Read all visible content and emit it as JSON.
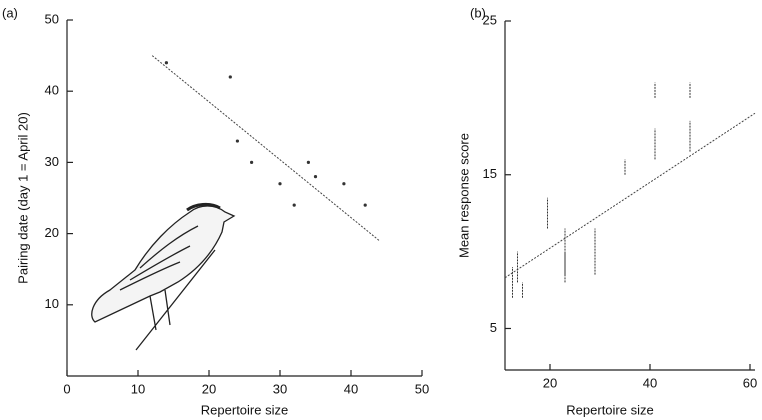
{
  "chart_data": [
    {
      "type": "scatter",
      "label": "(a)",
      "x_label": "Repertoire size",
      "y_label": "Pairing date (day 1 = April 20)",
      "x": [
        14,
        23,
        24,
        26,
        30,
        32,
        34,
        35,
        39,
        42
      ],
      "values": [
        44,
        42,
        33,
        30,
        27,
        24,
        30,
        28,
        27,
        24
      ],
      "fit": {
        "x": [
          12,
          44
        ],
        "values": [
          45,
          19
        ]
      },
      "color": "#333333",
      "xlim": [
        0,
        50
      ],
      "xticks": [
        0,
        10,
        20,
        30,
        40,
        50
      ],
      "ylim": [
        0,
        50
      ],
      "yticks": [
        10,
        20,
        30,
        40,
        50
      ]
    },
    {
      "type": "errorbar",
      "label": "(b)",
      "x_label": "Repertoire size",
      "y_label": "Mean response score",
      "x": [
        12.5,
        13.5,
        14.5,
        19.5,
        23,
        23,
        29,
        35,
        41,
        41,
        48,
        48
      ],
      "values": [
        8,
        9,
        7.5,
        12.5,
        9,
        10,
        10,
        15.5,
        17,
        20.5,
        17.5,
        20.5
      ],
      "errors": [
        1,
        1,
        0.5,
        1,
        1,
        1.5,
        1.5,
        0.5,
        1,
        0.5,
        1,
        0.5
      ],
      "fit": {
        "x": [
          11,
          61
        ],
        "values": [
          8.3,
          19
        ]
      },
      "color": "#333333",
      "xlim": [
        11,
        61
      ],
      "xticks": [
        20,
        40,
        60
      ],
      "ylim": [
        2.3,
        25
      ],
      "yticks": [
        5,
        15,
        25
      ]
    }
  ]
}
